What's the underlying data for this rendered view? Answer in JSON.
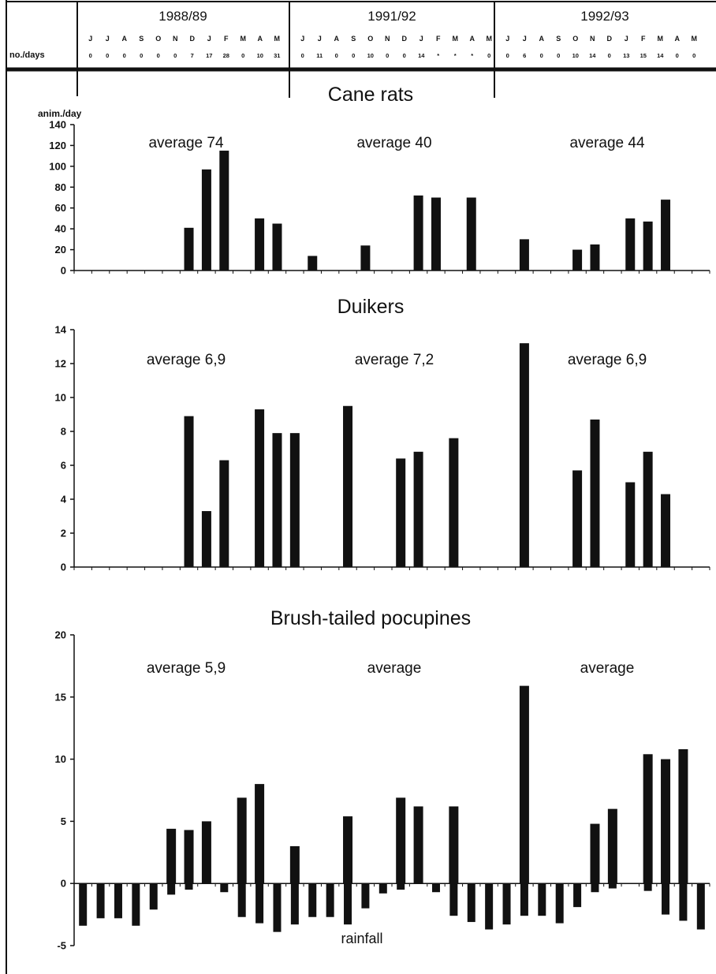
{
  "header": {
    "row_label": "no./days",
    "periods": [
      {
        "label": "1988/89",
        "months": [
          "J",
          "J",
          "A",
          "S",
          "O",
          "N",
          "D",
          "J",
          "F",
          "M",
          "A",
          "M"
        ],
        "days": [
          "0",
          "0",
          "0",
          "0",
          "0",
          "0",
          "7",
          "17",
          "28",
          "0",
          "10",
          "31"
        ]
      },
      {
        "label": "1991/92",
        "months": [
          "J",
          "J",
          "A",
          "S",
          "O",
          "N",
          "D",
          "J",
          "F",
          "M",
          "A",
          "M"
        ],
        "days": [
          "0",
          "11",
          "0",
          "0",
          "10",
          "0",
          "0",
          "14",
          "*",
          "*",
          "*",
          "0"
        ]
      },
      {
        "label": "1992/93",
        "months": [
          "J",
          "J",
          "A",
          "S",
          "O",
          "N",
          "D",
          "J",
          "F",
          "M",
          "A",
          "M"
        ],
        "days": [
          "0",
          "6",
          "0",
          "0",
          "10",
          "14",
          "0",
          "13",
          "15",
          "14",
          "0",
          "0"
        ]
      }
    ]
  },
  "chart_data": [
    {
      "type": "bar",
      "title": "Cane rats",
      "ylabel": "anim./day",
      "ylim": [
        0,
        140
      ],
      "yticks": [
        0,
        20,
        40,
        60,
        80,
        100,
        120,
        140
      ],
      "averages": [
        "average 74",
        "average 40",
        "average 44"
      ],
      "values": [
        0,
        0,
        0,
        0,
        0,
        0,
        41,
        97,
        115,
        0,
        50,
        45,
        0,
        14,
        0,
        0,
        24,
        0,
        0,
        72,
        70,
        0,
        70,
        0,
        0,
        30,
        0,
        0,
        20,
        25,
        0,
        50,
        47,
        68,
        0,
        0
      ]
    },
    {
      "type": "bar",
      "title": "Duikers",
      "ylim": [
        0,
        14
      ],
      "yticks": [
        0,
        2,
        4,
        6,
        8,
        10,
        12,
        14
      ],
      "averages": [
        "average 6,9",
        "average 7,2",
        "average 6,9"
      ],
      "values": [
        0,
        0,
        0,
        0,
        0,
        0,
        8.9,
        3.3,
        6.3,
        0,
        9.3,
        7.9,
        7.9,
        0,
        0,
        9.5,
        0,
        0,
        6.4,
        6.8,
        0,
        7.6,
        0,
        0,
        0,
        13.2,
        0,
        0,
        5.7,
        8.7,
        0,
        5.0,
        6.8,
        4.3,
        0,
        0
      ]
    },
    {
      "type": "bar",
      "title": "Brush-tailed pocupines",
      "ylim": [
        -5,
        20
      ],
      "yticks": [
        -5,
        0,
        5,
        10,
        15,
        20
      ],
      "averages": [
        "average 5,9",
        "average",
        "average"
      ],
      "values": [
        0,
        0,
        0,
        0,
        0,
        4.4,
        4.3,
        5.0,
        0,
        6.9,
        8.0,
        0,
        3.0,
        0,
        0,
        5.4,
        0,
        0,
        6.9,
        6.2,
        0,
        6.2,
        0,
        0,
        0,
        15.9,
        0,
        0,
        0,
        4.8,
        6.0,
        0,
        10.4,
        10.0,
        10.8,
        0
      ],
      "rainfall_label": "rainfall",
      "rainfall": [
        -3.4,
        -2.8,
        -2.8,
        -3.4,
        -2.1,
        -0.9,
        -0.5,
        0,
        -0.7,
        -2.7,
        -3.2,
        -3.9,
        -3.3,
        -2.7,
        -2.7,
        -3.3,
        -2.0,
        -0.8,
        -0.5,
        0,
        -0.7,
        -2.6,
        -3.1,
        -3.7,
        -3.3,
        -2.6,
        -2.6,
        -3.2,
        -1.9,
        -0.7,
        -0.4,
        0,
        -0.6,
        -2.5,
        -3.0,
        -3.7
      ]
    }
  ]
}
